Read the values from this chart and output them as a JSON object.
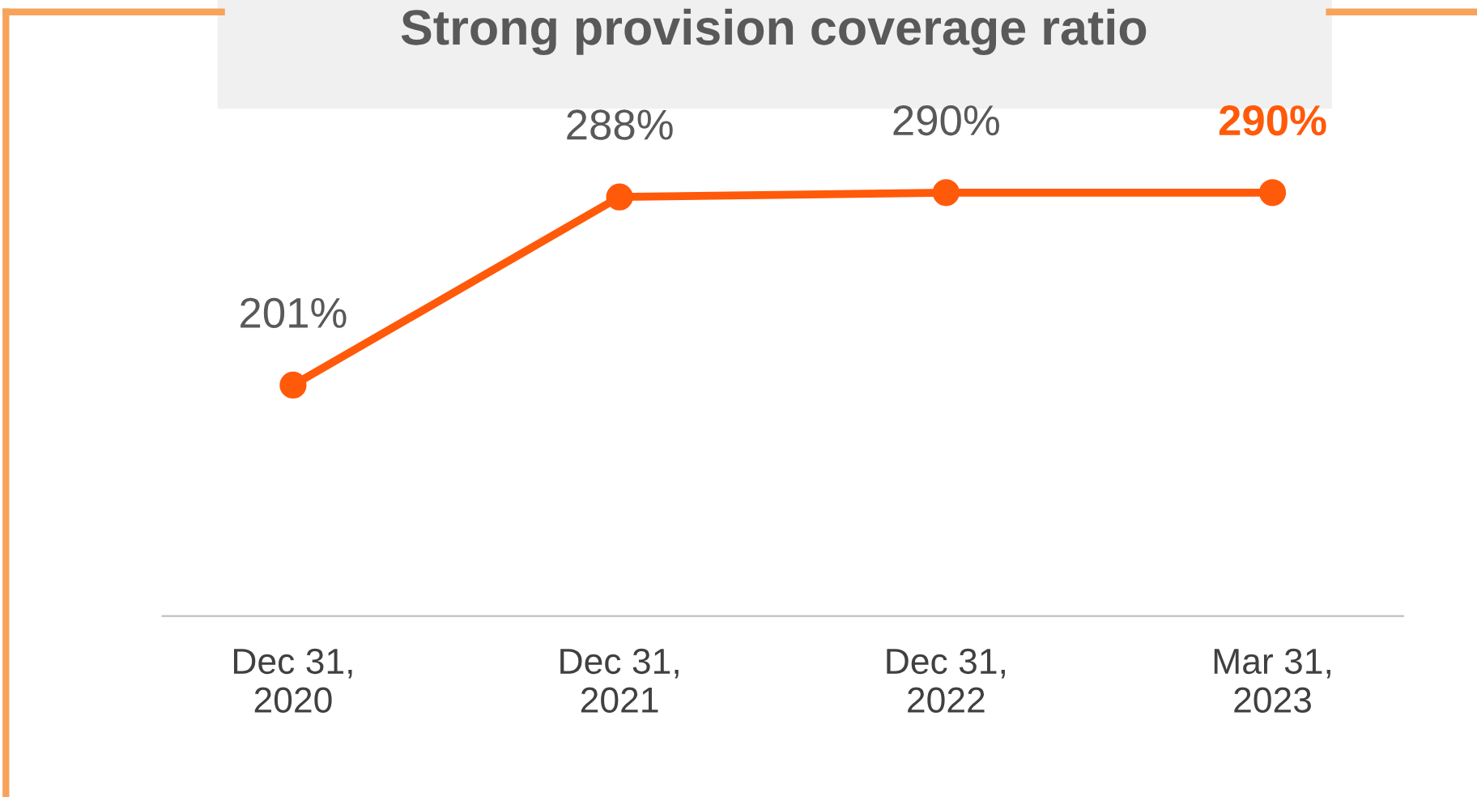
{
  "chart_data": {
    "type": "line",
    "title": "Strong provision coverage ratio",
    "categories": [
      "Dec 31,\n2020",
      "Dec 31,\n2021",
      "Dec 31,\n2022",
      "Mar 31,\n2023"
    ],
    "series": [
      {
        "color": "#ff5a0a",
        "values": [
          201,
          288,
          290,
          290
        ],
        "value_labels": [
          "201%",
          "288%",
          "290%",
          "290%"
        ]
      }
    ],
    "tick_labels": "x",
    "marker": "circle",
    "grid": false,
    "legend": false
  }
}
